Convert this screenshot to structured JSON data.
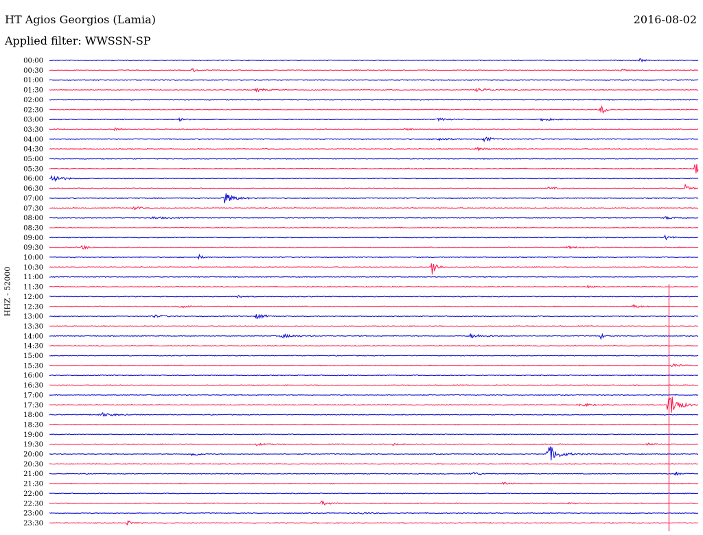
{
  "header": {
    "station": "HT Agios Georgios (Lamia)",
    "date": "2016-08-02",
    "filter_prefix": "Applied filter:",
    "filter_name": "WWSSN-SP"
  },
  "channel_label": "HHZ - 52000",
  "colors": {
    "even": "#1414d2",
    "odd": "#ff2050"
  },
  "chart_data": {
    "type": "line",
    "title": "HT Agios Georgios (Lamia)",
    "subtitle": "Applied filter: WWSSN-SP",
    "ylabel": "HHZ - 52000",
    "xlabel": "",
    "grid": false,
    "legend": "none",
    "row_labels": [
      "00:00",
      "00:30",
      "01:00",
      "01:30",
      "02:00",
      "02:30",
      "03:00",
      "03:30",
      "04:00",
      "04:30",
      "05:00",
      "05:30",
      "06:00",
      "06:30",
      "07:00",
      "07:30",
      "08:00",
      "08:30",
      "09:00",
      "09:30",
      "10:00",
      "10:30",
      "11:00",
      "11:30",
      "12:00",
      "12:30",
      "13:00",
      "13:30",
      "14:00",
      "14:30",
      "15:00",
      "15:30",
      "16:00",
      "16:30",
      "17:00",
      "17:30",
      "18:00",
      "18:30",
      "19:00",
      "19:30",
      "20:00",
      "20:30",
      "21:00",
      "21:30",
      "22:00",
      "22:30",
      "23:00",
      "23:30"
    ],
    "row_duration_min": 30,
    "events": [
      {
        "row": 0,
        "t": 0.91,
        "amp": 0.3,
        "dur": 0.012
      },
      {
        "row": 1,
        "t": 0.22,
        "amp": 0.45,
        "dur": 0.012
      },
      {
        "row": 1,
        "t": 0.88,
        "amp": 0.2,
        "dur": 0.02
      },
      {
        "row": 3,
        "t": 0.32,
        "amp": 0.25,
        "dur": 0.035
      },
      {
        "row": 3,
        "t": 0.66,
        "amp": 0.3,
        "dur": 0.04
      },
      {
        "row": 5,
        "t": 0.85,
        "amp": 1.0,
        "dur": 0.015
      },
      {
        "row": 6,
        "t": 0.2,
        "amp": 0.5,
        "dur": 0.012
      },
      {
        "row": 6,
        "t": 0.6,
        "amp": 0.2,
        "dur": 0.04
      },
      {
        "row": 6,
        "t": 0.76,
        "amp": 0.25,
        "dur": 0.03
      },
      {
        "row": 7,
        "t": 0.1,
        "amp": 0.2,
        "dur": 0.02
      },
      {
        "row": 7,
        "t": 0.55,
        "amp": 0.15,
        "dur": 0.03
      },
      {
        "row": 8,
        "t": 0.6,
        "amp": 0.3,
        "dur": 0.03
      },
      {
        "row": 8,
        "t": 0.67,
        "amp": 0.6,
        "dur": 0.02
      },
      {
        "row": 9,
        "t": 0.66,
        "amp": 0.2,
        "dur": 0.04
      },
      {
        "row": 11,
        "t": 0.995,
        "amp": 1.6,
        "dur": 0.01
      },
      {
        "row": 12,
        "t": 0.005,
        "amp": 0.8,
        "dur": 0.025
      },
      {
        "row": 13,
        "t": 0.77,
        "amp": 0.2,
        "dur": 0.03
      },
      {
        "row": 13,
        "t": 0.98,
        "amp": 0.7,
        "dur": 0.012
      },
      {
        "row": 14,
        "t": 0.27,
        "amp": 1.0,
        "dur": 0.03
      },
      {
        "row": 15,
        "t": 0.13,
        "amp": 0.3,
        "dur": 0.02
      },
      {
        "row": 15,
        "t": 0.56,
        "amp": 0.15,
        "dur": 0.01
      },
      {
        "row": 16,
        "t": 0.16,
        "amp": 0.2,
        "dur": 0.04
      },
      {
        "row": 16,
        "t": 0.95,
        "amp": 0.2,
        "dur": 0.04
      },
      {
        "row": 18,
        "t": 0.95,
        "amp": 0.6,
        "dur": 0.015
      },
      {
        "row": 19,
        "t": 0.05,
        "amp": 0.5,
        "dur": 0.015
      },
      {
        "row": 19,
        "t": 0.8,
        "amp": 0.15,
        "dur": 0.05
      },
      {
        "row": 20,
        "t": 0.23,
        "amp": 0.5,
        "dur": 0.01
      },
      {
        "row": 21,
        "t": 0.59,
        "amp": 2.0,
        "dur": 0.012
      },
      {
        "row": 23,
        "t": 0.83,
        "amp": 0.25,
        "dur": 0.01
      },
      {
        "row": 24,
        "t": 0.29,
        "amp": 0.4,
        "dur": 0.01
      },
      {
        "row": 25,
        "t": 0.2,
        "amp": 0.2,
        "dur": 0.04
      },
      {
        "row": 25,
        "t": 0.9,
        "amp": 0.35,
        "dur": 0.02
      },
      {
        "row": 26,
        "t": 0.16,
        "amp": 0.25,
        "dur": 0.03
      },
      {
        "row": 26,
        "t": 0.32,
        "amp": 0.6,
        "dur": 0.02
      },
      {
        "row": 28,
        "t": 0.36,
        "amp": 0.3,
        "dur": 0.04
      },
      {
        "row": 28,
        "t": 0.65,
        "amp": 0.35,
        "dur": 0.04
      },
      {
        "row": 28,
        "t": 0.85,
        "amp": 0.5,
        "dur": 0.01
      },
      {
        "row": 31,
        "t": 0.96,
        "amp": 0.4,
        "dur": 0.02
      },
      {
        "row": 35,
        "t": 0.82,
        "amp": 0.25,
        "dur": 0.04
      },
      {
        "row": 35,
        "t": 0.955,
        "amp": 2.6,
        "dur": 0.025
      },
      {
        "row": 36,
        "t": 0.08,
        "amp": 0.35,
        "dur": 0.04
      },
      {
        "row": 39,
        "t": 0.32,
        "amp": 0.2,
        "dur": 0.03
      },
      {
        "row": 39,
        "t": 0.53,
        "amp": 0.2,
        "dur": 0.02
      },
      {
        "row": 39,
        "t": 0.92,
        "amp": 0.2,
        "dur": 0.02
      },
      {
        "row": 40,
        "t": 0.22,
        "amp": 0.6,
        "dur": 0.015
      },
      {
        "row": 40,
        "t": 0.77,
        "amp": 1.6,
        "dur": 0.03
      },
      {
        "row": 42,
        "t": 0.65,
        "amp": 0.5,
        "dur": 0.02
      },
      {
        "row": 42,
        "t": 0.965,
        "amp": 0.4,
        "dur": 0.015
      },
      {
        "row": 43,
        "t": 0.7,
        "amp": 0.2,
        "dur": 0.02
      },
      {
        "row": 45,
        "t": 0.42,
        "amp": 0.4,
        "dur": 0.02
      },
      {
        "row": 45,
        "t": 0.8,
        "amp": 0.15,
        "dur": 0.02
      },
      {
        "row": 46,
        "t": 0.48,
        "amp": 0.15,
        "dur": 0.03
      },
      {
        "row": 47,
        "t": 0.12,
        "amp": 0.45,
        "dur": 0.015
      }
    ],
    "long_spike": {
      "t": 0.955,
      "from_row": 24,
      "to_row": 47
    }
  }
}
